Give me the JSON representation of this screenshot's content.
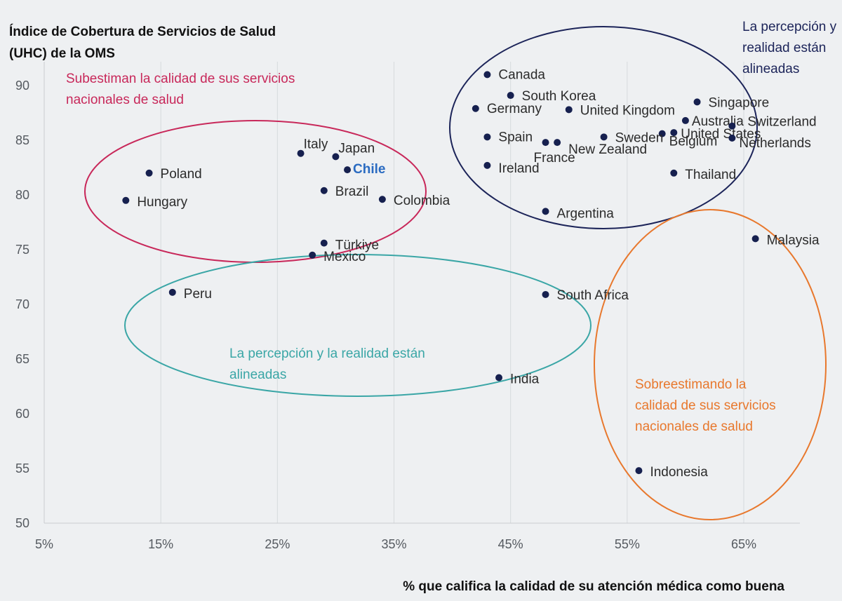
{
  "chart_data": {
    "type": "scatter",
    "ylabel": "Índice de Cobertura de Servicios de Salud (UHC) de la OMS",
    "ylabel_lines": [
      "Índice de Cobertura de Servicios de Salud",
      "(UHC) de la OMS"
    ],
    "xlabel": "% que califica la calidad de su atención médica como buena",
    "xlim": [
      5,
      70
    ],
    "ylim": [
      50,
      93
    ],
    "xticks": [
      5,
      15,
      25,
      35,
      45,
      55,
      65
    ],
    "xtick_labels": [
      "5%",
      "15%",
      "25%",
      "35%",
      "45%",
      "55%",
      "65%"
    ],
    "yticks": [
      50,
      55,
      60,
      65,
      70,
      75,
      80,
      85,
      90
    ],
    "ytick_labels": [
      "50",
      "55",
      "60",
      "65",
      "70",
      "75",
      "80",
      "85",
      "90"
    ],
    "grid": "vertical",
    "marker_color": "#16204f",
    "highlight_color": "#2a6bc1",
    "points": [
      {
        "name": "Canada",
        "x": 43,
        "y": 91.0
      },
      {
        "name": "South Korea",
        "x": 45,
        "y": 89.1
      },
      {
        "name": "Germany",
        "x": 42,
        "y": 87.9
      },
      {
        "name": "United Kingdom",
        "x": 50,
        "y": 87.8
      },
      {
        "name": "Singapore",
        "x": 61,
        "y": 88.5
      },
      {
        "name": "Australia",
        "x": 60,
        "y": 86.8
      },
      {
        "name": "Switzerland",
        "x": 64,
        "y": 86.3
      },
      {
        "name": "United States",
        "x": 59,
        "y": 85.7
      },
      {
        "name": "Belgium",
        "x": 58,
        "y": 85.6
      },
      {
        "name": "Netherlands",
        "x": 64,
        "y": 85.2
      },
      {
        "name": "Sweden",
        "x": 53,
        "y": 85.3
      },
      {
        "name": "Spain",
        "x": 43,
        "y": 85.3
      },
      {
        "name": "France",
        "x": 48,
        "y": 84.8
      },
      {
        "name": "New Zealand",
        "x": 49,
        "y": 84.8
      },
      {
        "name": "Ireland",
        "x": 43,
        "y": 82.7
      },
      {
        "name": "Thailand",
        "x": 59,
        "y": 82.0
      },
      {
        "name": "Argentina",
        "x": 48,
        "y": 78.5
      },
      {
        "name": "Italy",
        "x": 27,
        "y": 83.8
      },
      {
        "name": "Japan",
        "x": 30,
        "y": 83.5
      },
      {
        "name": "Chile",
        "x": 31,
        "y": 82.3,
        "highlight": true
      },
      {
        "name": "Poland",
        "x": 14,
        "y": 82.0
      },
      {
        "name": "Brazil",
        "x": 29,
        "y": 80.4
      },
      {
        "name": "Colombia",
        "x": 34,
        "y": 79.6
      },
      {
        "name": "Hungary",
        "x": 12,
        "y": 79.5
      },
      {
        "name": "Türkiye",
        "x": 29,
        "y": 75.6
      },
      {
        "name": "Mexico",
        "x": 28,
        "y": 74.5
      },
      {
        "name": "Peru",
        "x": 16,
        "y": 71.1
      },
      {
        "name": "South Africa",
        "x": 48,
        "y": 70.9
      },
      {
        "name": "India",
        "x": 44,
        "y": 63.3
      },
      {
        "name": "Malaysia",
        "x": 66,
        "y": 76.0
      },
      {
        "name": "Indonesia",
        "x": 56,
        "y": 54.8
      }
    ],
    "groups": [
      {
        "label_lines": [
          "Subestiman la calidad de sus servicios",
          "nacionales de salud"
        ],
        "color": "#c8285a"
      },
      {
        "label_lines": [
          "La percepción y",
          "realidad están",
          "alineadas"
        ],
        "color": "#1c2459"
      },
      {
        "label_lines": [
          "La percepción y la realidad están",
          "alineadas"
        ],
        "color": "#3aa6a6"
      },
      {
        "label_lines": [
          "Sobreestimando la",
          "calidad de sus servicios",
          "nacionales de salud"
        ],
        "color": "#e8782d"
      }
    ]
  }
}
